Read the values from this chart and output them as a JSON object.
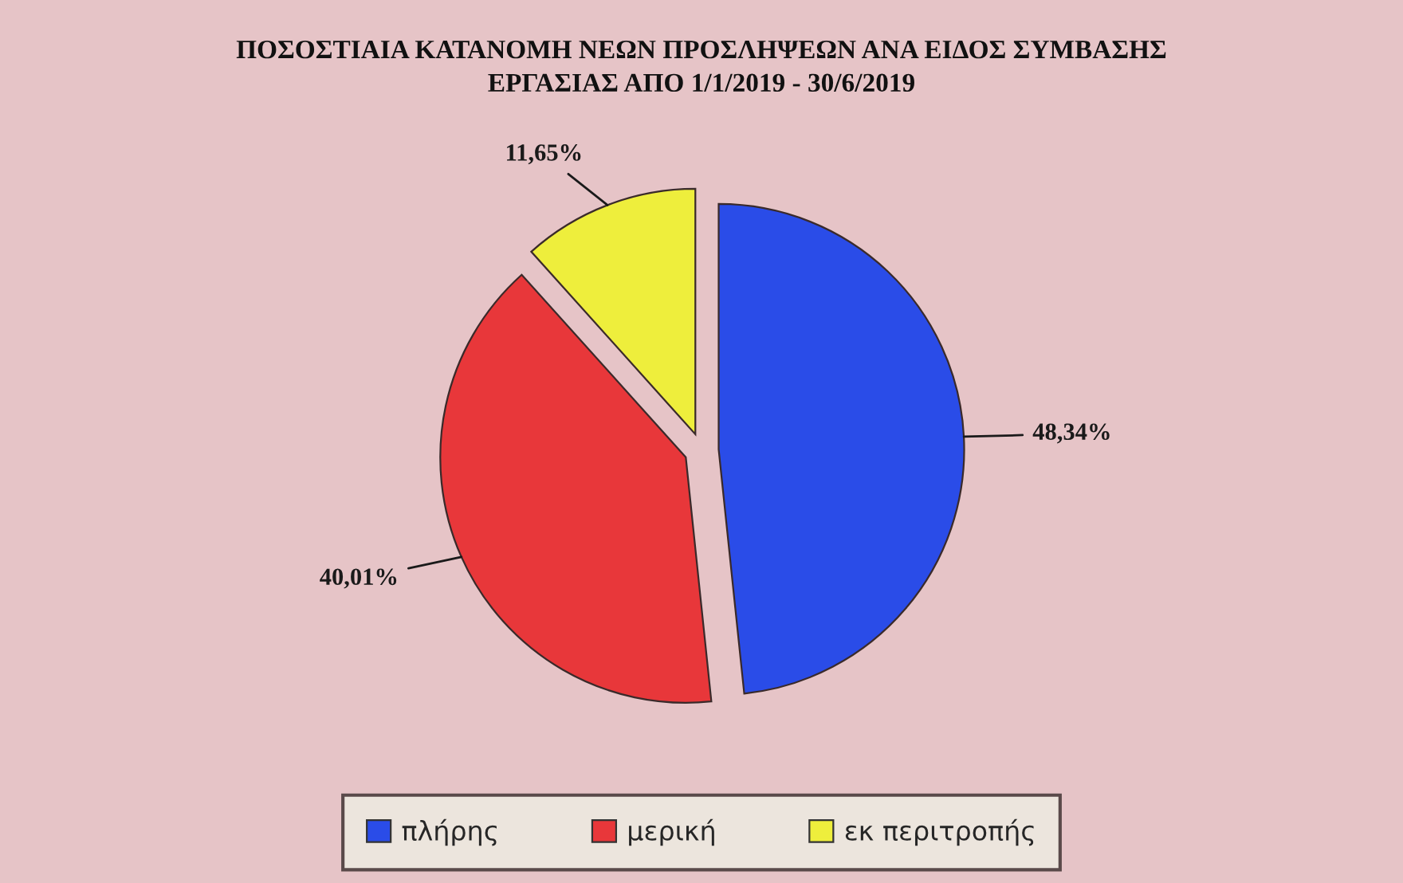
{
  "chart_data": {
    "type": "pie",
    "title": "ΠΟΣΟΣΤΙΑΙΑ ΚΑΤΑΝΟΜΗ ΝΕΩΝ ΠΡΟΣΛΗΨΕΩΝ ΑΝΑ ΕΙΔΟΣ ΣΥΜΒΑΣΗΣ\nΕΡΓΑΣΙΑΣ ΑΠΟ 1/1/2019 - 30/6/2019",
    "categories": [
      "πλήρης",
      "μερική",
      "εκ περιτροπής"
    ],
    "values": [
      48.34,
      40.01,
      11.65
    ],
    "value_labels": [
      "48,34%",
      "40,01%",
      "11,65%"
    ],
    "colors": [
      "#2a4ce8",
      "#e8373a",
      "#eeee3c"
    ],
    "legend": "bottom"
  }
}
